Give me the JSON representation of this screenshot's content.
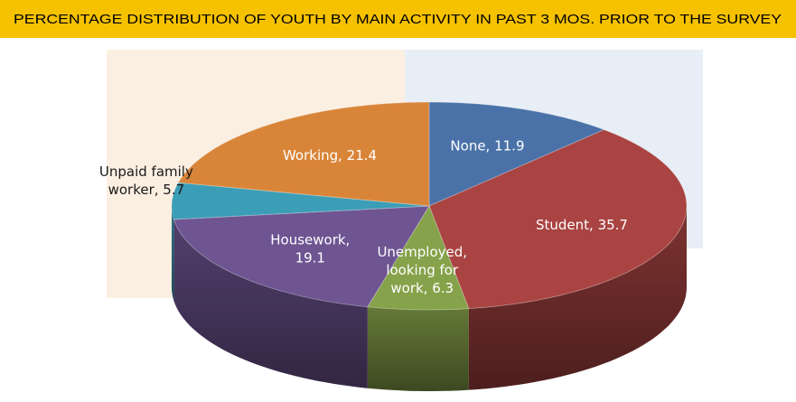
{
  "chart_data": {
    "type": "pie",
    "title": "PERCENTAGE DISTRIBUTION OF YOUTH BY MAIN ACTIVITY IN PAST 3 MOS. PRIOR TO THE SURVEY",
    "values": [
      11.9,
      35.7,
      6.3,
      19.1,
      5.7,
      21.4
    ],
    "value_labels": [
      [
        "None, 11.9"
      ],
      [
        "Student, 35.7"
      ],
      [
        "Unemployed,",
        "looking for",
        "work, 6.3"
      ],
      [
        "Housework,",
        "19.1"
      ],
      [
        "Unpaid family",
        "worker, 5.7"
      ],
      [
        "Working, 21.4"
      ]
    ],
    "colors": [
      "#4a72a8",
      "#a94442",
      "#86a24a",
      "#6e5592",
      "#3c9db6",
      "#d98539"
    ]
  }
}
